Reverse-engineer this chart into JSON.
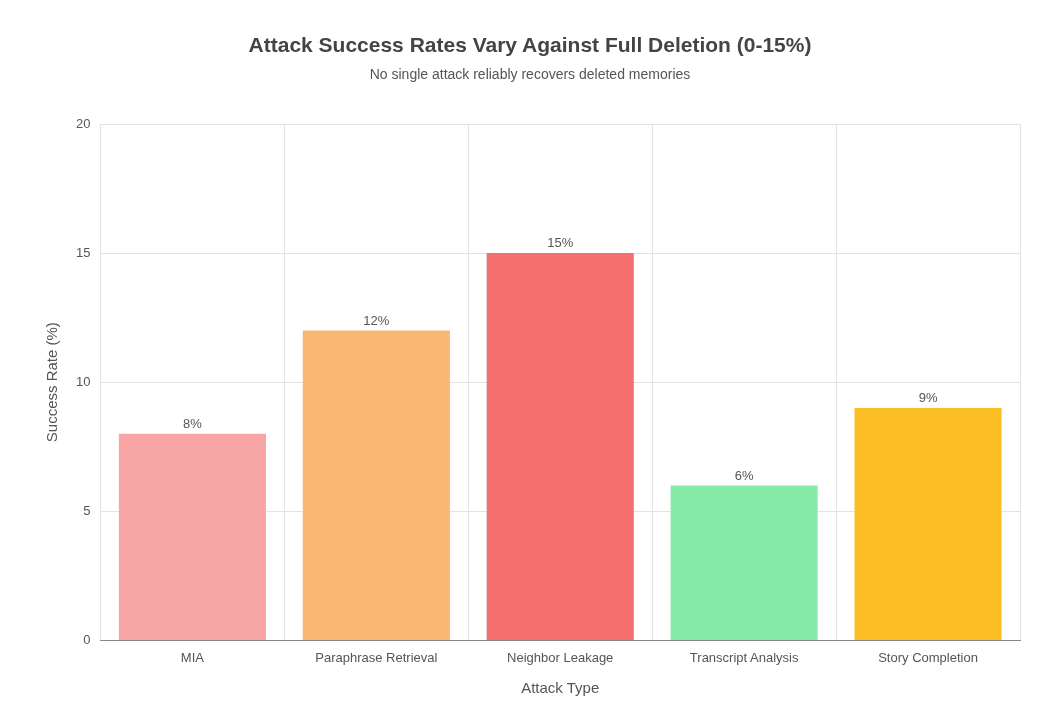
{
  "chart_data": {
    "type": "bar",
    "title": "Attack Success Rates Vary Against Full Deletion (0-15%)",
    "subtitle": "No single attack reliably recovers deleted memories",
    "xlabel": "Attack Type",
    "ylabel": "Success Rate (%)",
    "categories": [
      "MIA",
      "Paraphrase Retrieval",
      "Neighbor Leakage",
      "Transcript Analysis",
      "Story Completion"
    ],
    "values": [
      8,
      12,
      15,
      6,
      9
    ],
    "colors": [
      "#f8a5a5",
      "#f9b872",
      "#f47070",
      "#86eaa9",
      "#fbbf24"
    ],
    "value_labels": [
      "8%",
      "12%",
      "15%",
      "6%",
      "9%"
    ],
    "ylim": [
      0,
      20
    ],
    "yticks": [
      0,
      5,
      10,
      15,
      20
    ],
    "grid": true
  }
}
